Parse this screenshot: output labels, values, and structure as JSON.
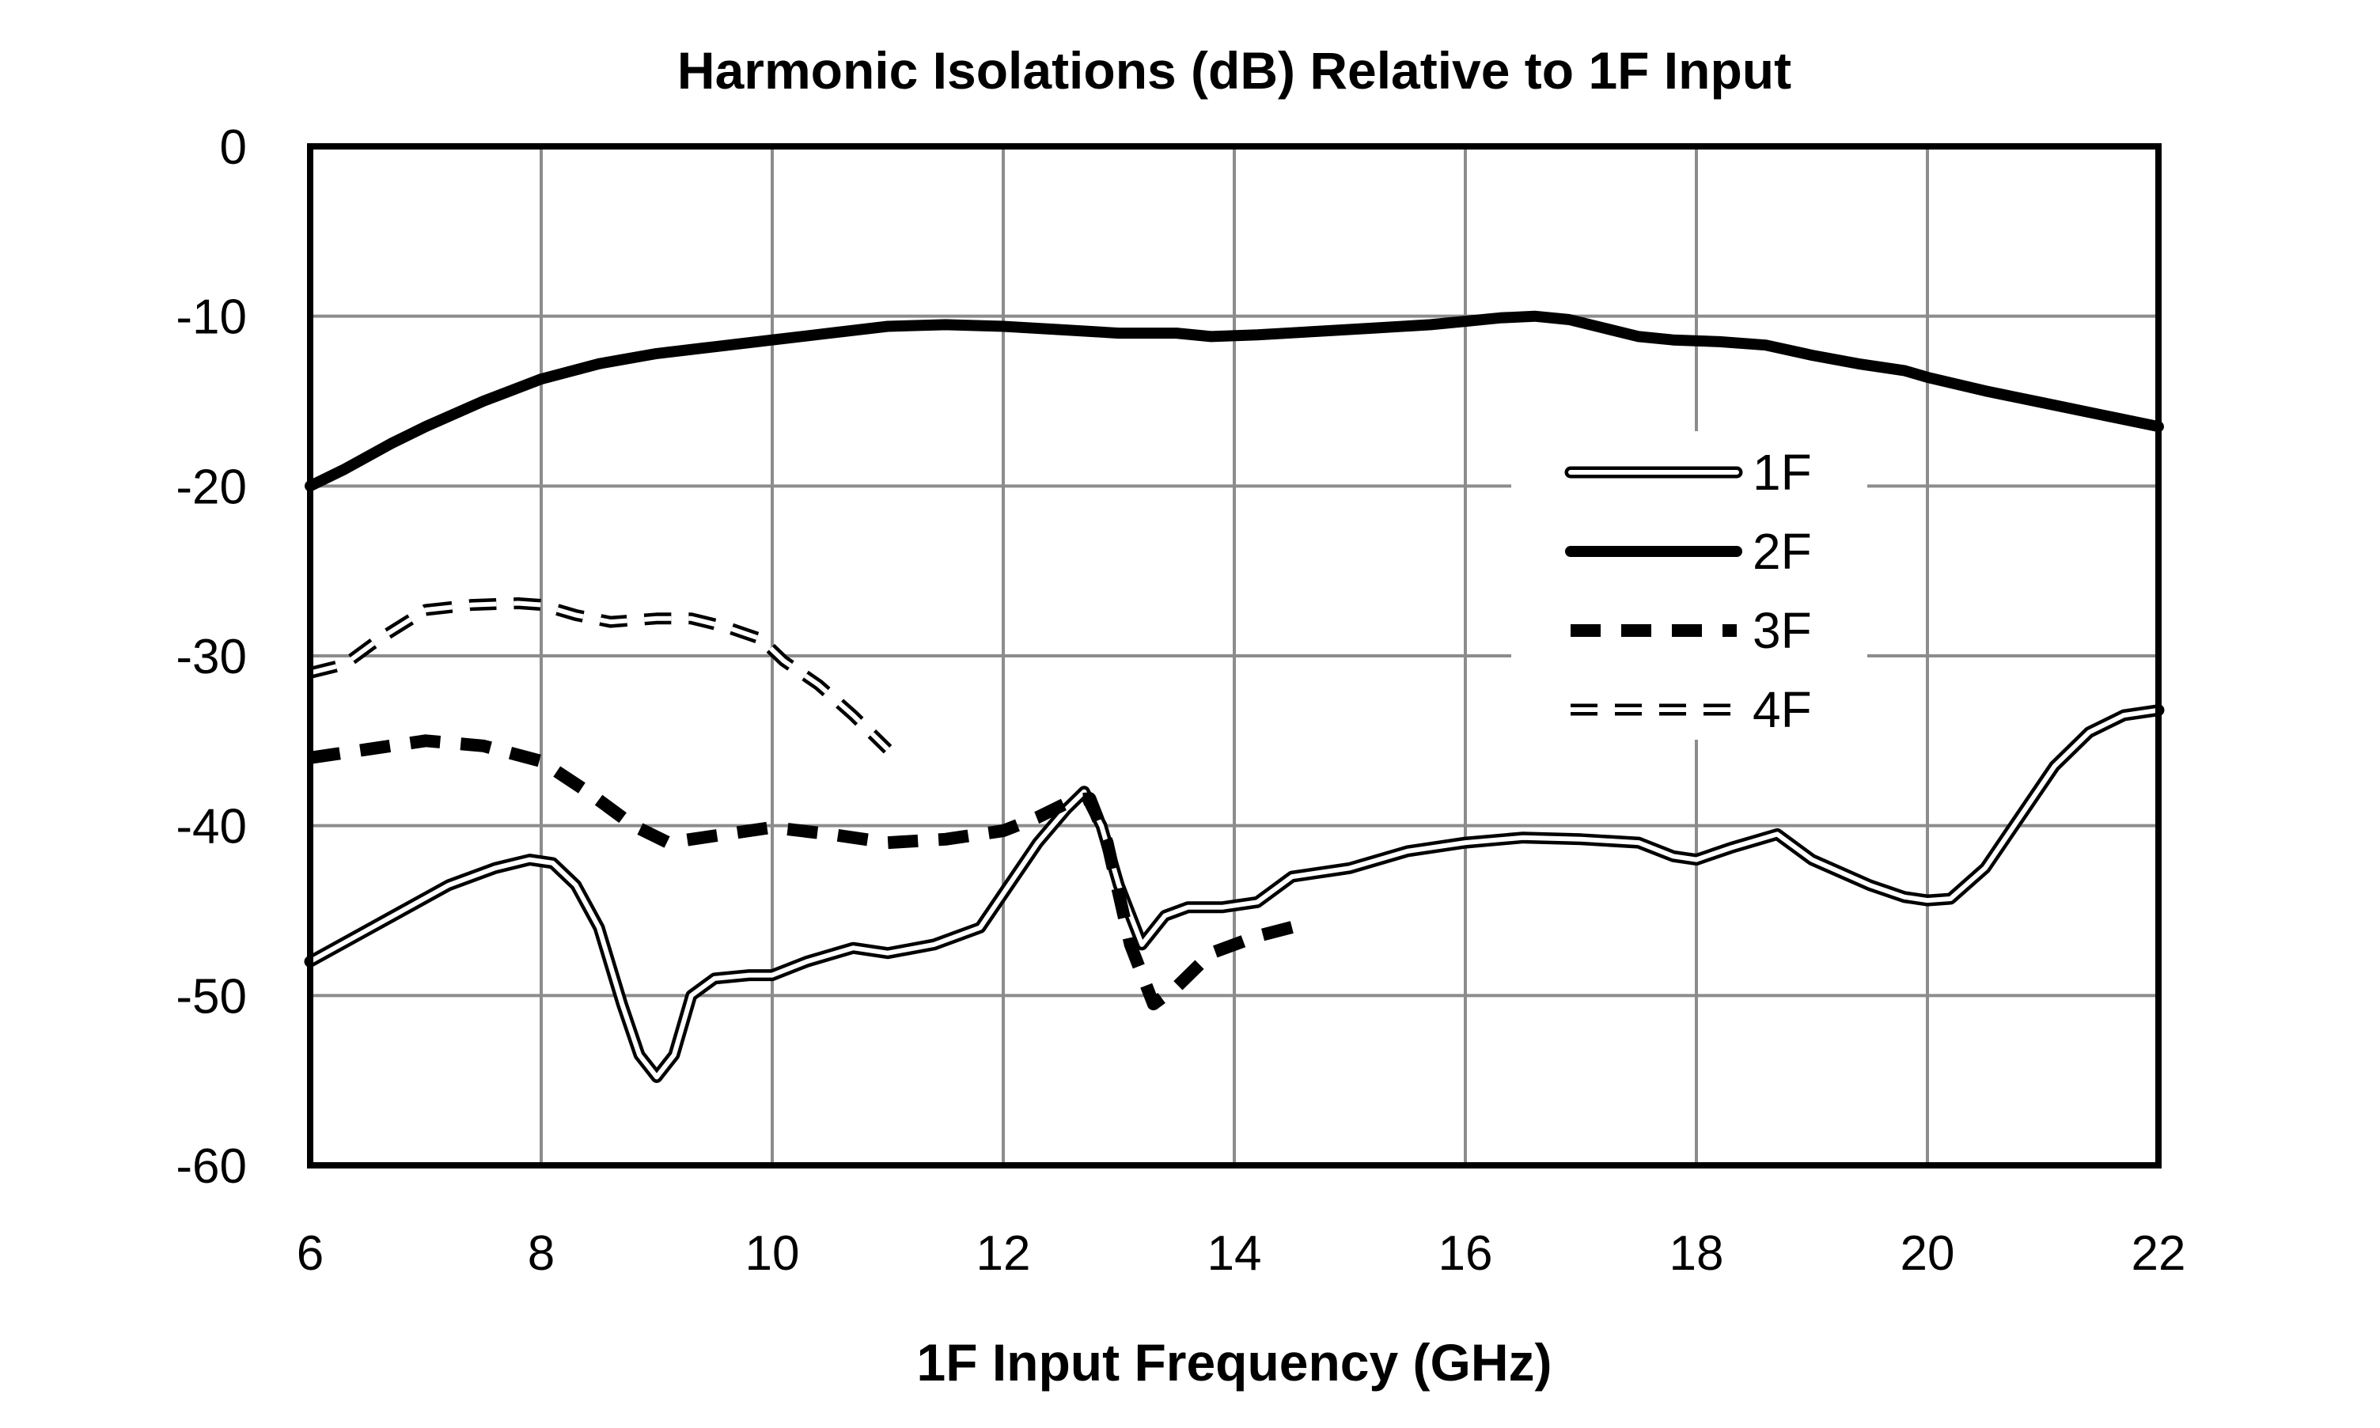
{
  "chart_data": {
    "type": "line",
    "title": "Harmonic Isolations (dB) Relative to 1F Input",
    "xlabel": "1F Input Frequency (GHz)",
    "ylabel": "",
    "xlim": [
      6,
      22
    ],
    "ylim": [
      -60,
      0
    ],
    "x_ticks": [
      "6",
      "8",
      "10",
      "12",
      "14",
      "16",
      "18",
      "20",
      "22"
    ],
    "y_ticks": [
      "0",
      "-10",
      "-20",
      "-30",
      "-40",
      "-50",
      "-60"
    ],
    "grid": true,
    "legend_position": "right-center",
    "series": [
      {
        "name": "1F",
        "style": "double-line",
        "x": [
          6.0,
          6.4,
          6.8,
          7.2,
          7.6,
          7.9,
          8.1,
          8.3,
          8.5,
          8.7,
          8.85,
          9.0,
          9.15,
          9.3,
          9.5,
          9.8,
          10.0,
          10.3,
          10.7,
          11.0,
          11.4,
          11.8,
          12.0,
          12.3,
          12.55,
          12.7,
          12.85,
          13.0,
          13.2,
          13.4,
          13.6,
          13.9,
          14.2,
          14.5,
          15.0,
          15.5,
          16.0,
          16.5,
          17.0,
          17.5,
          17.8,
          18.0,
          18.3,
          18.7,
          19.0,
          19.5,
          19.8,
          20.0,
          20.2,
          20.5,
          20.8,
          21.1,
          21.4,
          21.7,
          22.0
        ],
        "values": [
          -48,
          -46.5,
          -45,
          -43.5,
          -42.5,
          -42,
          -42.2,
          -43.5,
          -46,
          -50.5,
          -53.5,
          -54.8,
          -53.5,
          -50,
          -49,
          -48.8,
          -48.8,
          -48,
          -47.2,
          -47.5,
          -47,
          -46,
          -44,
          -41,
          -39,
          -38,
          -40,
          -43.5,
          -47,
          -45.3,
          -44.8,
          -44.8,
          -44.5,
          -43,
          -42.5,
          -41.5,
          -41,
          -40.7,
          -40.8,
          -41,
          -41.8,
          -42,
          -41.3,
          -40.5,
          -42,
          -43.5,
          -44.2,
          -44.4,
          -44.3,
          -42.5,
          -39.5,
          -36.5,
          -34.5,
          -33.5,
          -33.2
        ]
      },
      {
        "name": "2F",
        "style": "thick-solid",
        "x": [
          6.0,
          6.3,
          6.7,
          7.0,
          7.5,
          8.0,
          8.5,
          9.0,
          9.5,
          10.0,
          10.5,
          11.0,
          11.5,
          12.0,
          12.5,
          13.0,
          13.5,
          13.8,
          14.2,
          14.7,
          15.2,
          15.7,
          16.0,
          16.3,
          16.6,
          16.9,
          17.2,
          17.5,
          17.8,
          18.2,
          18.6,
          19.0,
          19.4,
          19.8,
          20.0,
          20.5,
          21.0,
          21.5,
          22.0
        ],
        "values": [
          -20,
          -19,
          -17.5,
          -16.5,
          -15,
          -13.7,
          -12.8,
          -12.2,
          -11.8,
          -11.4,
          -11,
          -10.6,
          -10.5,
          -10.6,
          -10.8,
          -11,
          -11,
          -11.2,
          -11.1,
          -10.9,
          -10.7,
          -10.5,
          -10.3,
          -10.1,
          -10,
          -10.2,
          -10.7,
          -11.2,
          -11.4,
          -11.5,
          -11.7,
          -12.3,
          -12.8,
          -13.2,
          -13.6,
          -14.4,
          -15.1,
          -15.8,
          -16.5
        ]
      },
      {
        "name": "3F",
        "style": "thick-dashed",
        "x": [
          6.0,
          6.5,
          7.0,
          7.5,
          8.0,
          8.4,
          8.8,
          9.1,
          9.5,
          10.0,
          10.5,
          11.0,
          11.5,
          12.0,
          12.3,
          12.6,
          12.75,
          12.9,
          13.1,
          13.3,
          13.5,
          13.8,
          14.2,
          14.6
        ],
        "values": [
          -36,
          -35.5,
          -35,
          -35.3,
          -36.2,
          -38,
          -40,
          -41,
          -40.6,
          -40.1,
          -40.5,
          -41,
          -40.8,
          -40.3,
          -39.5,
          -38.5,
          -38.4,
          -41,
          -47,
          -50.5,
          -49.5,
          -47.5,
          -46.5,
          -45.8
        ]
      },
      {
        "name": "4F",
        "style": "double-dashed",
        "x": [
          6.0,
          6.3,
          6.6,
          7.0,
          7.4,
          7.8,
          8.0,
          8.3,
          8.6,
          9.0,
          9.3,
          9.6,
          9.9,
          10.1,
          10.4,
          10.7,
          11.0
        ],
        "values": [
          -31,
          -30.5,
          -29,
          -27.3,
          -27,
          -26.9,
          -27,
          -27.6,
          -28,
          -27.8,
          -27.8,
          -28.3,
          -29,
          -30.3,
          -31.7,
          -33.5,
          -35.5
        ]
      }
    ]
  }
}
